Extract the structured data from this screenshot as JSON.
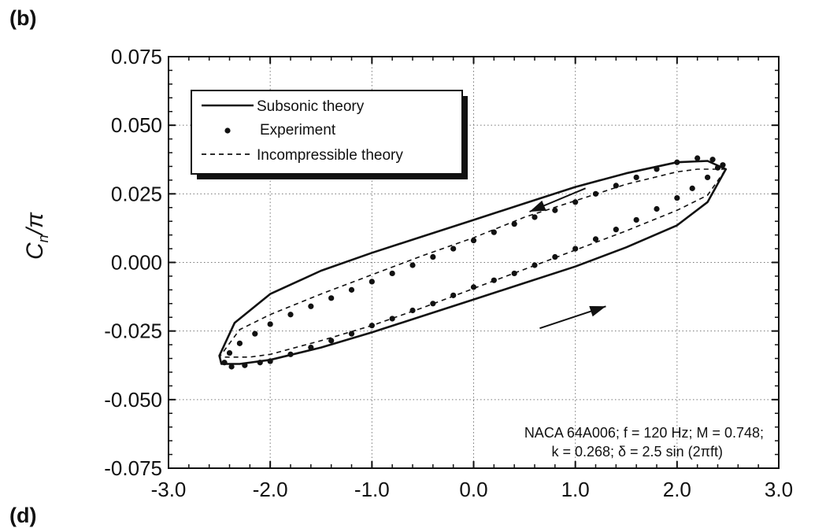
{
  "panel_label": "(b)",
  "next_panel_label": "(d)",
  "chart_data": {
    "type": "line",
    "xlabel": "",
    "ylabel": "Cn/π",
    "xlim": [
      -3.0,
      3.0
    ],
    "ylim": [
      -0.075,
      0.075
    ],
    "x_ticks": [
      "-3.0",
      "-2.0",
      "-1.0",
      "0.0",
      "1.0",
      "2.0",
      "3.0"
    ],
    "y_ticks": [
      "0.075",
      "0.050",
      "0.025",
      "0.000",
      "-0.025",
      "-0.050",
      "-0.075"
    ],
    "grid": "dotted",
    "legend_position": "top-left",
    "legend": [
      {
        "label": "Subsonic theory",
        "style": "solid"
      },
      {
        "label": "Experiment",
        "style": "markers"
      },
      {
        "label": "Incompressible theory",
        "style": "dashed"
      }
    ],
    "annotation": {
      "line1": "NACA 64A006;  f = 120 Hz;  M = 0.748;",
      "line2": "k = 0.268;  δ = 2.5 sin (2πft)"
    },
    "series": [
      {
        "name": "Subsonic theory",
        "style": "solid",
        "x": [
          2.48,
          2.3,
          2.0,
          1.5,
          1.0,
          0.5,
          0.0,
          -0.5,
          -1.0,
          -1.5,
          -2.0,
          -2.35,
          -2.5,
          -2.48,
          -2.3,
          -2.0,
          -1.5,
          -1.0,
          -0.5,
          0.0,
          0.5,
          1.0,
          1.5,
          2.0,
          2.3,
          2.48
        ],
        "y": [
          0.034,
          0.037,
          0.0365,
          0.0325,
          0.0275,
          0.0215,
          0.0155,
          0.0095,
          0.0035,
          -0.003,
          -0.0115,
          -0.022,
          -0.034,
          -0.037,
          -0.037,
          -0.0355,
          -0.031,
          -0.0255,
          -0.0195,
          -0.0135,
          -0.0075,
          -0.0015,
          0.0055,
          0.0135,
          0.022,
          0.034
        ]
      },
      {
        "name": "Experiment",
        "style": "markers",
        "x": [
          2.45,
          2.35,
          2.2,
          2.0,
          1.8,
          1.6,
          1.4,
          1.2,
          1.0,
          0.8,
          0.6,
          0.4,
          0.2,
          0.0,
          -0.2,
          -0.4,
          -0.6,
          -0.8,
          -1.0,
          -1.2,
          -1.4,
          -1.6,
          -1.8,
          -2.0,
          -2.15,
          -2.3,
          -2.4,
          -2.45,
          -2.38,
          -2.25,
          -2.1,
          -2.0,
          -1.8,
          -1.6,
          -1.4,
          -1.2,
          -1.0,
          -0.8,
          -0.6,
          -0.4,
          -0.2,
          0.0,
          0.2,
          0.4,
          0.6,
          0.8,
          1.0,
          1.2,
          1.4,
          1.6,
          1.8,
          2.0,
          2.15,
          2.3,
          2.4
        ],
        "y": [
          0.0355,
          0.0375,
          0.038,
          0.0365,
          0.034,
          0.031,
          0.028,
          0.025,
          0.022,
          0.019,
          0.0165,
          0.014,
          0.011,
          0.008,
          0.005,
          0.002,
          -0.001,
          -0.004,
          -0.007,
          -0.01,
          -0.013,
          -0.016,
          -0.019,
          -0.0225,
          -0.026,
          -0.0295,
          -0.033,
          -0.0365,
          -0.038,
          -0.0375,
          -0.0365,
          -0.036,
          -0.0335,
          -0.031,
          -0.0285,
          -0.026,
          -0.023,
          -0.0205,
          -0.0175,
          -0.015,
          -0.012,
          -0.009,
          -0.0065,
          -0.004,
          -0.001,
          0.002,
          0.005,
          0.0085,
          0.012,
          0.0155,
          0.0195,
          0.0235,
          0.027,
          0.031,
          0.0345
        ]
      },
      {
        "name": "Incompressible theory",
        "style": "dashed",
        "x": [
          2.48,
          2.2,
          2.0,
          1.5,
          1.0,
          0.5,
          0.0,
          -0.5,
          -1.0,
          -1.5,
          -2.0,
          -2.3,
          -2.5,
          -2.2,
          -2.0,
          -1.5,
          -1.0,
          -0.5,
          0.0,
          0.5,
          1.0,
          1.5,
          2.0,
          2.3,
          2.48
        ],
        "y": [
          0.034,
          0.034,
          0.033,
          0.0285,
          0.0225,
          0.0165,
          0.009,
          0.0025,
          -0.0045,
          -0.0115,
          -0.019,
          -0.0245,
          -0.0345,
          -0.0345,
          -0.0335,
          -0.0285,
          -0.023,
          -0.0165,
          -0.0095,
          -0.0025,
          0.0045,
          0.0115,
          0.019,
          0.0245,
          0.034
        ]
      }
    ],
    "arrows": [
      {
        "from": [
          1.1,
          0.027
        ],
        "to": [
          0.55,
          0.0185
        ],
        "direction": "left"
      },
      {
        "from": [
          0.65,
          -0.024
        ],
        "to": [
          1.3,
          -0.016
        ],
        "direction": "right"
      }
    ]
  }
}
